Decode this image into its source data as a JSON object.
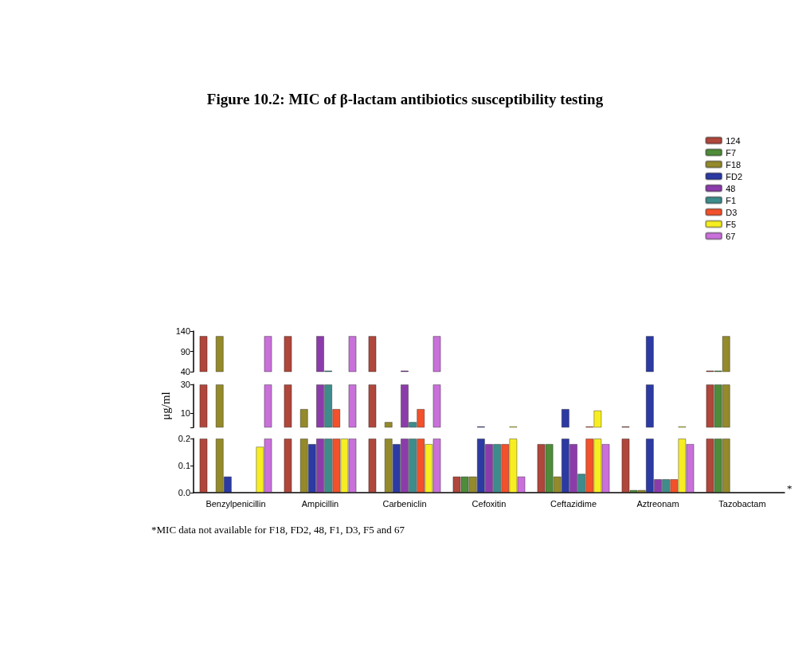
{
  "chart_data": [
    {
      "type": "bar",
      "title": "Figure 10.2: MIC of β-lactam antibiotics susceptibility testing",
      "legend": "top right",
      "tick_labels": "y",
      "categories": [
        "Benzylpenicillin",
        "Ampicillin",
        "Carbeniclin",
        "Cefoxitin",
        "Ceftazidime",
        "Aztreonam",
        "Tazobactam"
      ],
      "ylim": [
        40,
        140
      ],
      "yticks": [
        40,
        90,
        140
      ],
      "series": [
        {
          "name": "124",
          "color": "#b0473c",
          "values": [
            128,
            128,
            128,
            null,
            null,
            null,
            43
          ]
        },
        {
          "name": "F7",
          "color": "#4e8c3a",
          "values": [
            null,
            null,
            null,
            null,
            null,
            null,
            43
          ]
        },
        {
          "name": "F18",
          "color": "#948a2c",
          "values": [
            128,
            null,
            null,
            null,
            null,
            null,
            128
          ]
        },
        {
          "name": "FD2",
          "color": "#2c3aa3",
          "values": [
            null,
            null,
            null,
            null,
            null,
            128,
            null
          ]
        },
        {
          "name": "48",
          "color": "#8c3caa",
          "values": [
            null,
            128,
            43,
            null,
            null,
            null,
            null
          ]
        },
        {
          "name": "F1",
          "color": "#3e8c8c",
          "values": [
            null,
            43,
            null,
            null,
            null,
            null,
            null
          ]
        },
        {
          "name": "D3",
          "color": "#f2512b",
          "values": [
            null,
            null,
            null,
            null,
            null,
            null,
            null
          ]
        },
        {
          "name": "F5",
          "color": "#f7ee22",
          "values": [
            null,
            null,
            null,
            null,
            null,
            null,
            null
          ]
        },
        {
          "name": "67",
          "color": "#c970da",
          "values": [
            128,
            128,
            128,
            null,
            null,
            null,
            null
          ]
        }
      ]
    },
    {
      "type": "bar",
      "ylabel": "μg/ml",
      "tick_labels": "y",
      "categories": [
        "Benzylpenicillin",
        "Ampicillin",
        "Carbeniclin",
        "Cefoxitin",
        "Ceftazidime",
        "Aztreonam",
        "Tazobactam"
      ],
      "ylim": [
        0.2,
        30
      ],
      "yticks": [
        {
          "value": 0.2,
          "label": null
        },
        10,
        30
      ],
      "series": [
        {
          "color": "#b0473c",
          "values": [
            30,
            30,
            30,
            null,
            null,
            1,
            30
          ]
        },
        {
          "color": "#4e8c3a",
          "values": [
            null,
            null,
            null,
            null,
            null,
            null,
            30
          ]
        },
        {
          "color": "#948a2c",
          "values": [
            30,
            13,
            4,
            null,
            null,
            null,
            30
          ]
        },
        {
          "color": "#2c3aa3",
          "values": [
            null,
            null,
            null,
            1,
            13,
            30,
            null
          ]
        },
        {
          "color": "#8c3caa",
          "values": [
            null,
            30,
            30,
            null,
            null,
            null,
            null
          ]
        },
        {
          "color": "#3e8c8c",
          "values": [
            null,
            30,
            4,
            null,
            null,
            null,
            null
          ]
        },
        {
          "color": "#f2512b",
          "values": [
            null,
            13,
            13,
            null,
            1,
            null,
            null
          ]
        },
        {
          "color": "#f7ee22",
          "values": [
            null,
            null,
            null,
            1,
            12,
            1,
            null
          ]
        },
        {
          "color": "#c970da",
          "values": [
            30,
            30,
            30,
            null,
            null,
            null,
            null
          ]
        }
      ]
    },
    {
      "type": "bar",
      "annotations": [
        "*",
        "*MIC data not available for F18, FD2, 48, F1, D3, F5 and 67"
      ],
      "categories": [
        "Benzylpenicillin",
        "Ampicillin",
        "Carbeniclin",
        "Cefoxitin",
        "Ceftazidime",
        "Aztreonam",
        "Tazobactam"
      ],
      "ylim": [
        0,
        0.2
      ],
      "yticks": [
        {
          "value": 0,
          "label": "0.0"
        },
        0.1,
        0.2
      ],
      "series": [
        {
          "color": "#b0473c",
          "values": [
            0.2,
            0.2,
            0.2,
            0.06,
            0.18,
            0.2,
            0.2
          ]
        },
        {
          "color": "#4e8c3a",
          "values": [
            null,
            null,
            null,
            0.06,
            0.18,
            0.01,
            0.2
          ]
        },
        {
          "color": "#948a2c",
          "values": [
            0.2,
            0.2,
            0.2,
            0.06,
            0.06,
            0.01,
            0.2
          ]
        },
        {
          "color": "#2c3aa3",
          "values": [
            0.06,
            0.18,
            0.18,
            0.2,
            0.2,
            0.2,
            null
          ]
        },
        {
          "color": "#8c3caa",
          "values": [
            null,
            0.2,
            0.2,
            0.18,
            0.18,
            0.05,
            null
          ]
        },
        {
          "color": "#3e8c8c",
          "values": [
            null,
            0.2,
            0.2,
            0.18,
            0.07,
            0.05,
            null
          ]
        },
        {
          "color": "#f2512b",
          "values": [
            null,
            0.2,
            0.2,
            0.18,
            0.2,
            0.05,
            null
          ]
        },
        {
          "color": "#f7ee22",
          "values": [
            0.17,
            0.2,
            0.18,
            0.2,
            0.2,
            0.2,
            null
          ]
        },
        {
          "color": "#c970da",
          "values": [
            0.2,
            0.2,
            0.2,
            0.06,
            0.18,
            0.18,
            null
          ]
        }
      ]
    }
  ]
}
